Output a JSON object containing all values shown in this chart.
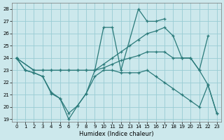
{
  "xlabel": "Humidex (Indice chaleur)",
  "background_color": "#cce8ec",
  "grid_color": "#99ccd4",
  "line_color": "#2a7a7a",
  "xlim": [
    -0.5,
    23.5
  ],
  "ylim": [
    18.8,
    28.5
  ],
  "yticks": [
    19,
    20,
    21,
    22,
    23,
    24,
    25,
    26,
    27,
    28
  ],
  "xticks": [
    0,
    1,
    2,
    3,
    4,
    5,
    6,
    7,
    8,
    9,
    10,
    11,
    12,
    13,
    14,
    15,
    16,
    17,
    18,
    19,
    20,
    21,
    22,
    23
  ],
  "line1_x": [
    0,
    1,
    2,
    3,
    4,
    5,
    6,
    7,
    8,
    9,
    10,
    11,
    12,
    14,
    15,
    16,
    17
  ],
  "line1_y": [
    24,
    23,
    22.8,
    22.5,
    21.1,
    20.7,
    19.0,
    20.1,
    21.1,
    23.0,
    26.5,
    26.5,
    23.0,
    28.0,
    27.0,
    27.0,
    27.2
  ],
  "line2_x": [
    0,
    2,
    3,
    4,
    5,
    6,
    7,
    8,
    9,
    10,
    11,
    12,
    13,
    14,
    15,
    16,
    17,
    18,
    19,
    20,
    21,
    22
  ],
  "line2_y": [
    24,
    23,
    23,
    23,
    23,
    23,
    23,
    23,
    23,
    23.5,
    24.0,
    24.5,
    25.0,
    25.5,
    26.0,
    26.2,
    26.5,
    25.8,
    24.0,
    24.0,
    23.0,
    25.8
  ],
  "line3_x": [
    0,
    2,
    3,
    4,
    5,
    6,
    7,
    8,
    9,
    10,
    11,
    12,
    13,
    14,
    15,
    16,
    17,
    18,
    19,
    20,
    21,
    22,
    23
  ],
  "line3_y": [
    24,
    23,
    23,
    23,
    23,
    23,
    23,
    23,
    23,
    23.2,
    23.5,
    23.8,
    24.0,
    24.2,
    24.5,
    24.5,
    24.5,
    24.0,
    24.0,
    24.0,
    23.0,
    21.8,
    19.5
  ],
  "line4_x": [
    0,
    1,
    2,
    3,
    4,
    5,
    6,
    7,
    8,
    9,
    10,
    11,
    12,
    13,
    14,
    15,
    16,
    17,
    18,
    19,
    20,
    21,
    22,
    23
  ],
  "line4_y": [
    24,
    23,
    22.8,
    22.5,
    21.2,
    20.7,
    19.5,
    20.1,
    21.1,
    22.5,
    23.0,
    23.0,
    22.8,
    22.8,
    22.8,
    23.0,
    22.5,
    22.0,
    21.5,
    21.0,
    20.5,
    20.0,
    21.8,
    19.5
  ]
}
